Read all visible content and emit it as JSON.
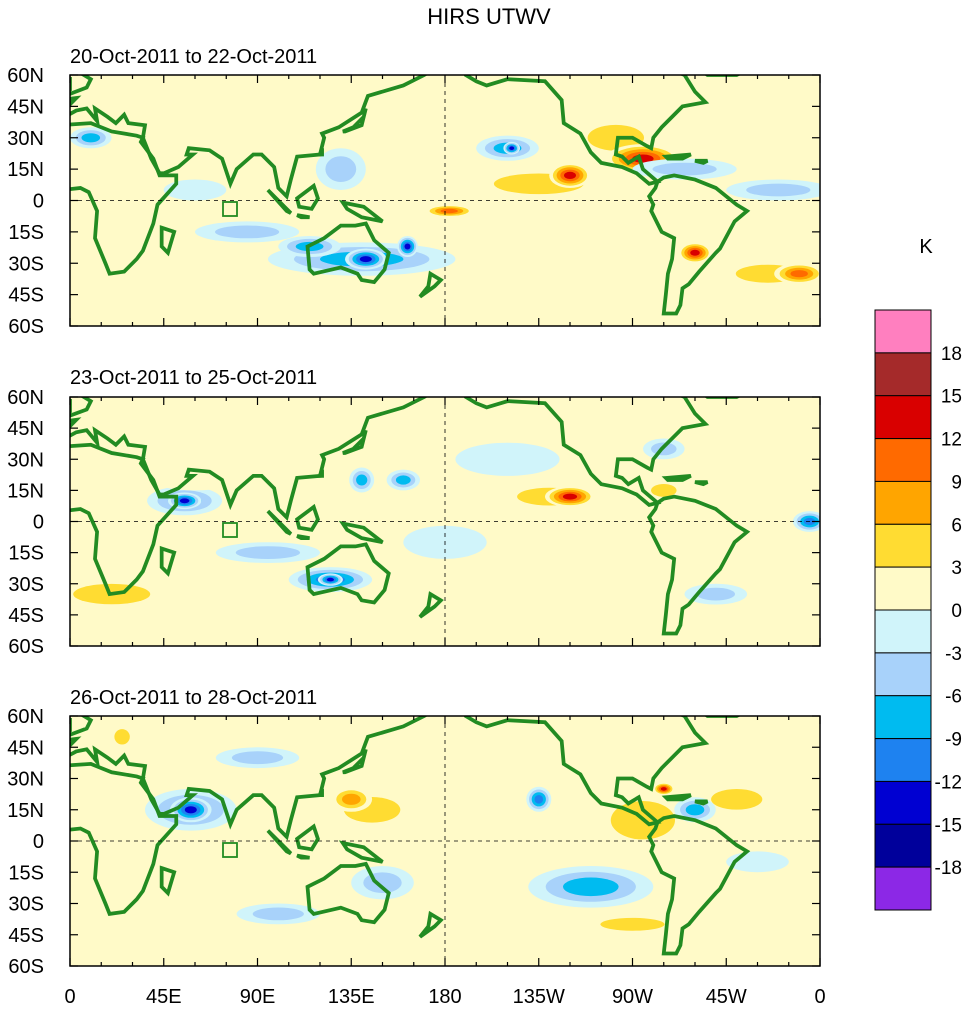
{
  "figure": {
    "title": "HIRS UTWV",
    "colorbar_unit": "K"
  },
  "chart_data": {
    "type": "heatmap",
    "title": "HIRS UTWV",
    "projection": "cylindrical-equidistant",
    "lon_range": [
      0,
      360
    ],
    "lat_range": [
      -60,
      60
    ],
    "lat_ticks": [
      "60N",
      "45N",
      "30N",
      "15N",
      "0",
      "15S",
      "30S",
      "45S",
      "60S"
    ],
    "lon_ticks": [
      "0",
      "45E",
      "90E",
      "135E",
      "180",
      "135W",
      "90W",
      "45W",
      "0"
    ],
    "panels": [
      {
        "label": "20-Oct-2011 to 22-Oct-2011",
        "features": [
          {
            "lon": 275,
            "lat": 20,
            "rx": 18,
            "ry": 7,
            "v": 15
          },
          {
            "lon": 262,
            "lat": 30,
            "rx": 22,
            "ry": 10,
            "v": 8
          },
          {
            "lon": 240,
            "lat": 12,
            "rx": 10,
            "ry": 6,
            "v": 15
          },
          {
            "lon": 225,
            "lat": 8,
            "rx": 35,
            "ry": 8,
            "v": 7
          },
          {
            "lon": 182,
            "lat": -5,
            "rx": 12,
            "ry": 3,
            "v": 13
          },
          {
            "lon": 300,
            "lat": -25,
            "rx": 8,
            "ry": 5,
            "v": 15
          },
          {
            "lon": 350,
            "lat": -35,
            "rx": 12,
            "ry": 5,
            "v": 13
          },
          {
            "lon": 335,
            "lat": -35,
            "rx": 25,
            "ry": 7,
            "v": 7
          },
          {
            "lon": 30,
            "lat": -47,
            "rx": 30,
            "ry": 4,
            "v": 5
          },
          {
            "lon": 95,
            "lat": 40,
            "rx": 30,
            "ry": 6,
            "v": 4
          },
          {
            "lon": 160,
            "lat": 40,
            "rx": 25,
            "ry": 5,
            "v": 5
          },
          {
            "lon": 140,
            "lat": -28,
            "rx": 45,
            "ry": 8,
            "v": -10
          },
          {
            "lon": 142,
            "lat": -28,
            "rx": 10,
            "ry": 5,
            "v": -16
          },
          {
            "lon": 162,
            "lat": -22,
            "rx": 5,
            "ry": 5,
            "v": -17
          },
          {
            "lon": 115,
            "lat": -22,
            "rx": 15,
            "ry": 5,
            "v": -11
          },
          {
            "lon": 85,
            "lat": -15,
            "rx": 25,
            "ry": 5,
            "v": -8
          },
          {
            "lon": 210,
            "lat": 25,
            "rx": 15,
            "ry": 6,
            "v": -10
          },
          {
            "lon": 212,
            "lat": 25,
            "rx": 4,
            "ry": 3,
            "v": -17
          },
          {
            "lon": 10,
            "lat": 30,
            "rx": 10,
            "ry": 5,
            "v": -9
          },
          {
            "lon": 295,
            "lat": 15,
            "rx": 25,
            "ry": 5,
            "v": -7
          },
          {
            "lon": 340,
            "lat": 5,
            "rx": 25,
            "ry": 5,
            "v": -7
          },
          {
            "lon": 130,
            "lat": 15,
            "rx": 12,
            "ry": 10,
            "v": -7
          },
          {
            "lon": 60,
            "lat": 5,
            "rx": 15,
            "ry": 5,
            "v": -5
          }
        ]
      },
      {
        "label": "23-Oct-2011 to 25-Oct-2011",
        "features": [
          {
            "lon": 240,
            "lat": 12,
            "rx": 12,
            "ry": 5,
            "v": 15
          },
          {
            "lon": 230,
            "lat": 12,
            "rx": 25,
            "ry": 7,
            "v": 7
          },
          {
            "lon": 20,
            "lat": -35,
            "rx": 30,
            "ry": 8,
            "v": 7
          },
          {
            "lon": 285,
            "lat": 15,
            "rx": 10,
            "ry": 5,
            "v": 6
          },
          {
            "lon": 330,
            "lat": -30,
            "rx": 25,
            "ry": 6,
            "v": 5
          },
          {
            "lon": 90,
            "lat": 20,
            "rx": 25,
            "ry": 4,
            "v": 5
          },
          {
            "lon": 160,
            "lat": -40,
            "rx": 30,
            "ry": 4,
            "v": 5
          },
          {
            "lon": 60,
            "lat": 20,
            "rx": 20,
            "ry": 5,
            "v": 4
          },
          {
            "lon": 55,
            "lat": 10,
            "rx": 8,
            "ry": 4,
            "v": -16
          },
          {
            "lon": 55,
            "lat": 10,
            "rx": 18,
            "ry": 7,
            "v": -9
          },
          {
            "lon": 125,
            "lat": -28,
            "rx": 20,
            "ry": 6,
            "v": -13
          },
          {
            "lon": 125,
            "lat": -28,
            "rx": 6,
            "ry": 3,
            "v": -16
          },
          {
            "lon": 355,
            "lat": 0,
            "rx": 8,
            "ry": 5,
            "v": -13
          },
          {
            "lon": 160,
            "lat": 20,
            "rx": 8,
            "ry": 5,
            "v": -11
          },
          {
            "lon": 140,
            "lat": 20,
            "rx": 6,
            "ry": 6,
            "v": -10
          },
          {
            "lon": 95,
            "lat": -15,
            "rx": 25,
            "ry": 5,
            "v": -6
          },
          {
            "lon": 310,
            "lat": -35,
            "rx": 15,
            "ry": 5,
            "v": -8
          },
          {
            "lon": 285,
            "lat": 35,
            "rx": 10,
            "ry": 5,
            "v": -7
          },
          {
            "lon": 180,
            "lat": -10,
            "rx": 20,
            "ry": 8,
            "v": -5
          },
          {
            "lon": 210,
            "lat": 30,
            "rx": 25,
            "ry": 8,
            "v": -5
          }
        ]
      },
      {
        "label": "26-Oct-2011 to 28-Oct-2011",
        "features": [
          {
            "lon": 58,
            "lat": 15,
            "rx": 10,
            "ry": 6,
            "v": -16
          },
          {
            "lon": 58,
            "lat": 15,
            "rx": 22,
            "ry": 10,
            "v": -10
          },
          {
            "lon": 225,
            "lat": 20,
            "rx": 6,
            "ry": 6,
            "v": -12
          },
          {
            "lon": 250,
            "lat": -22,
            "rx": 30,
            "ry": 10,
            "v": -9
          },
          {
            "lon": 285,
            "lat": 25,
            "rx": 5,
            "ry": 3,
            "v": 15
          },
          {
            "lon": 275,
            "lat": 10,
            "rx": 25,
            "ry": 15,
            "v": 7
          },
          {
            "lon": 145,
            "lat": 15,
            "rx": 22,
            "ry": 10,
            "v": 7
          },
          {
            "lon": 135,
            "lat": 20,
            "rx": 10,
            "ry": 6,
            "v": 10
          },
          {
            "lon": 270,
            "lat": -40,
            "rx": 25,
            "ry": 5,
            "v": 6
          },
          {
            "lon": 25,
            "lat": 50,
            "rx": 6,
            "ry": 6,
            "v": 8
          },
          {
            "lon": 320,
            "lat": 20,
            "rx": 20,
            "ry": 8,
            "v": 6
          },
          {
            "lon": 50,
            "lat": -45,
            "rx": 20,
            "ry": 4,
            "v": 5
          },
          {
            "lon": 20,
            "lat": -25,
            "rx": 20,
            "ry": 7,
            "v": 5
          },
          {
            "lon": 300,
            "lat": 15,
            "rx": 10,
            "ry": 6,
            "v": -10
          },
          {
            "lon": 90,
            "lat": 40,
            "rx": 20,
            "ry": 5,
            "v": -6
          },
          {
            "lon": 150,
            "lat": -20,
            "rx": 15,
            "ry": 8,
            "v": -6
          },
          {
            "lon": 100,
            "lat": -35,
            "rx": 20,
            "ry": 5,
            "v": -6
          },
          {
            "lon": 200,
            "lat": 40,
            "rx": 30,
            "ry": 6,
            "v": 5
          },
          {
            "lon": 330,
            "lat": -10,
            "rx": 15,
            "ry": 5,
            "v": -5
          }
        ]
      }
    ],
    "colorbar": {
      "levels": [
        "18",
        "15",
        "12",
        "9",
        "6",
        "3",
        "0",
        "-3",
        "-6",
        "-9",
        "-12",
        "-15",
        "-18"
      ],
      "unit": "K",
      "colors": [
        "#ff7fbf",
        "#a52a2a",
        "#d90000",
        "#ff6a00",
        "#ffa500",
        "#ffdc32",
        "#fffac8",
        "#d0f4fa",
        "#a8d2fa",
        "#00bbf0",
        "#1e82f0",
        "#0000d2",
        "#00009b",
        "#8c28e6"
      ]
    }
  }
}
